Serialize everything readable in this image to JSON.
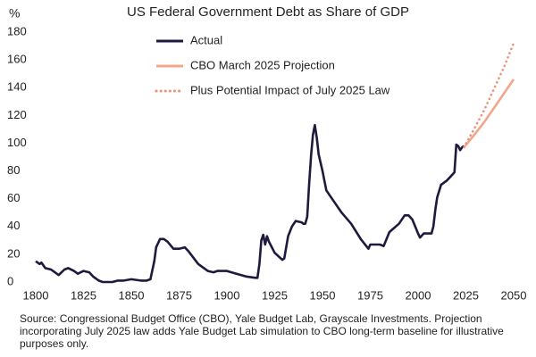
{
  "chart_data": {
    "type": "line",
    "title": "US Federal Government Debt as Share of GDP",
    "y_label": "%",
    "source": "Source: Congressional Budget Office (CBO), Yale Budget Lab, Grayscale Investments. Projection incorporating July 2025 law adds Yale Budget Lab simulation to CBO long-term baseline for illustrative purposes only.",
    "xlim": [
      1800,
      2050
    ],
    "xticks": [
      1800,
      1825,
      1850,
      1875,
      1900,
      1925,
      1950,
      1975,
      2000,
      2025,
      2050
    ],
    "ylim": [
      0,
      180
    ],
    "yticks": [
      0,
      20,
      40,
      60,
      80,
      100,
      120,
      140,
      160,
      180
    ],
    "grid": false,
    "legend": "top-left",
    "series": [
      {
        "name": "Actual",
        "color": "#1e1a3d",
        "dash": "solid",
        "x": [
          1800,
          1802,
          1803,
          1805,
          1808,
          1810,
          1812,
          1815,
          1817,
          1820,
          1822,
          1825,
          1828,
          1830,
          1833,
          1835,
          1840,
          1843,
          1846,
          1850,
          1855,
          1858,
          1860,
          1862,
          1863,
          1865,
          1867,
          1869,
          1872,
          1875,
          1878,
          1880,
          1885,
          1890,
          1893,
          1895,
          1900,
          1905,
          1910,
          1915,
          1916,
          1917,
          1918,
          1919,
          1920,
          1921,
          1922,
          1925,
          1929,
          1930,
          1932,
          1934,
          1936,
          1939,
          1940,
          1941,
          1942,
          1943,
          1944,
          1945,
          1946,
          1947,
          1948,
          1950,
          1952,
          1955,
          1960,
          1965,
          1970,
          1974,
          1975,
          1980,
          1982,
          1985,
          1990,
          1993,
          1995,
          1997,
          2000,
          2001,
          2003,
          2007,
          2008,
          2009,
          2010,
          2012,
          2015,
          2017,
          2019,
          2020,
          2021,
          2022,
          2023,
          2024
        ],
        "values": [
          15,
          13,
          14,
          10,
          9,
          7,
          5,
          9,
          10,
          8,
          6,
          8,
          7,
          4,
          1,
          0,
          0,
          1,
          1,
          2,
          1,
          1,
          2,
          15,
          25,
          31,
          31,
          29,
          24,
          24,
          25,
          22,
          13,
          8,
          7,
          8,
          8,
          6,
          4,
          3,
          3,
          13,
          30,
          34,
          27,
          33,
          29,
          21,
          16,
          17,
          33,
          40,
          44,
          43,
          42,
          42,
          47,
          70,
          91,
          106,
          113,
          104,
          92,
          80,
          66,
          60,
          50,
          42,
          31,
          24,
          27,
          27,
          26,
          36,
          42,
          48,
          48,
          45,
          35,
          32,
          35,
          35,
          40,
          52,
          61,
          70,
          73,
          76,
          79,
          99,
          98,
          95,
          97,
          98
        ]
      },
      {
        "name": "CBO March 2025 Projection",
        "color": "#f4a68c",
        "dash": "solid",
        "x": [
          2024,
          2030,
          2035,
          2040,
          2045,
          2050
        ],
        "values": [
          97,
          107,
          116,
          126,
          136,
          146
        ]
      },
      {
        "name": "Plus Potential Impact of July 2025 Law",
        "color": "#ef8f78",
        "dash": "dotted",
        "x": [
          2024,
          2030,
          2035,
          2040,
          2045,
          2050
        ],
        "values": [
          97,
          112,
          125,
          140,
          155,
          172
        ]
      }
    ]
  }
}
